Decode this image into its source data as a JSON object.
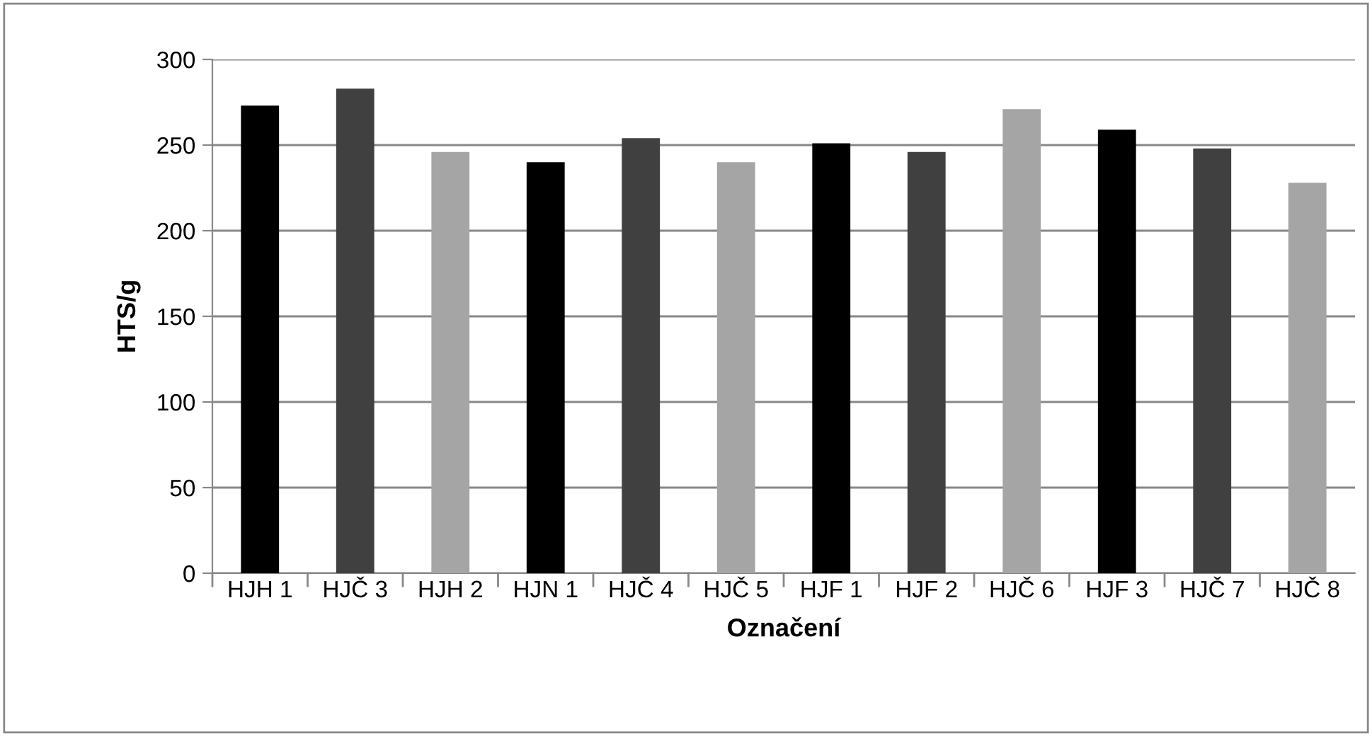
{
  "chart_data": {
    "type": "bar",
    "xlabel": "Označení",
    "ylabel": "HTS/g",
    "categories": [
      "HJH 1",
      "HJČ 3",
      "HJH 2",
      "HJN 1",
      "HJČ 4",
      "HJČ 5",
      "HJF 1",
      "HJF 2",
      "HJČ 6",
      "HJF 3",
      "HJČ 7",
      "HJČ 8"
    ],
    "values": [
      273,
      283,
      246,
      240,
      254,
      240,
      251,
      246,
      271,
      259,
      248,
      228
    ],
    "colors": [
      "#000000",
      "#404040",
      "#a5a5a5",
      "#000000",
      "#404040",
      "#a5a5a5",
      "#000000",
      "#404040",
      "#a5a5a5",
      "#000000",
      "#404040",
      "#a5a5a5"
    ],
    "ylim": [
      0,
      300
    ],
    "yticks": [
      0,
      50,
      100,
      150,
      200,
      250,
      300
    ],
    "grid": "y",
    "legend": false
  }
}
